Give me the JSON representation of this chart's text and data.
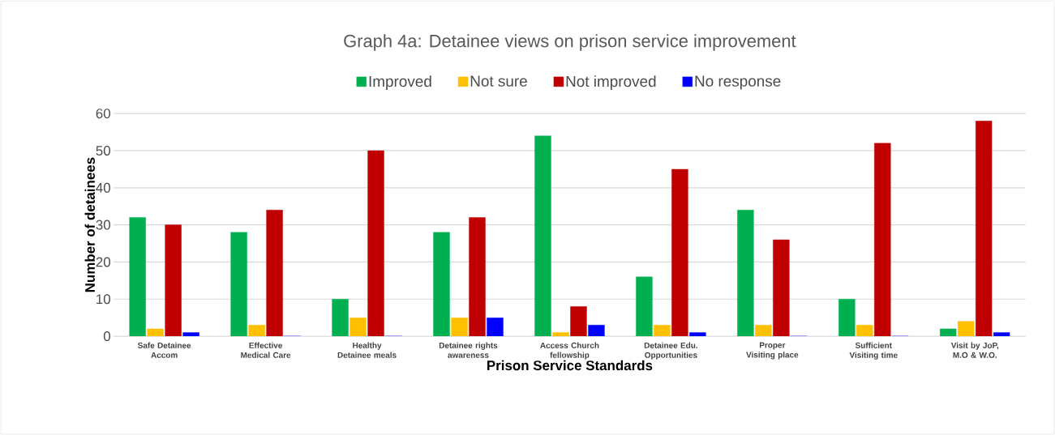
{
  "chart_data": {
    "type": "bar",
    "title": "Graph 4a: Detainee views on prison service improvement",
    "xlabel": "Prison Service Standards",
    "ylabel": "Number of detainees",
    "categories": [
      "Safe Detainee Accom",
      "Effective Medical Care",
      "Healthy Detainee meals",
      "Detainee rights awareness",
      "Access Church fellowship",
      "Detainee Edu. Opportunities",
      "Proper Visiting place",
      "Sufficient Visiting time",
      "Visit by JoP, M.O & W.O."
    ],
    "series": [
      {
        "name": "Improved",
        "color": "#00b050",
        "values": [
          32,
          28,
          10,
          28,
          54,
          16,
          34,
          10,
          2
        ]
      },
      {
        "name": "Not sure",
        "color": "#ffc000",
        "values": [
          2,
          3,
          5,
          5,
          1,
          3,
          3,
          3,
          4
        ]
      },
      {
        "name": "Not improved",
        "color": "#c00000",
        "values": [
          30,
          34,
          50,
          32,
          8,
          45,
          26,
          52,
          58
        ]
      },
      {
        "name": "No response",
        "color": "#0000ff",
        "values": [
          1,
          0,
          0,
          5,
          3,
          1,
          0,
          0,
          1
        ]
      }
    ],
    "ylim": [
      0,
      60
    ],
    "yticks": [
      0,
      10,
      20,
      30,
      40,
      50,
      60
    ],
    "grid": "y",
    "legend": "top"
  }
}
